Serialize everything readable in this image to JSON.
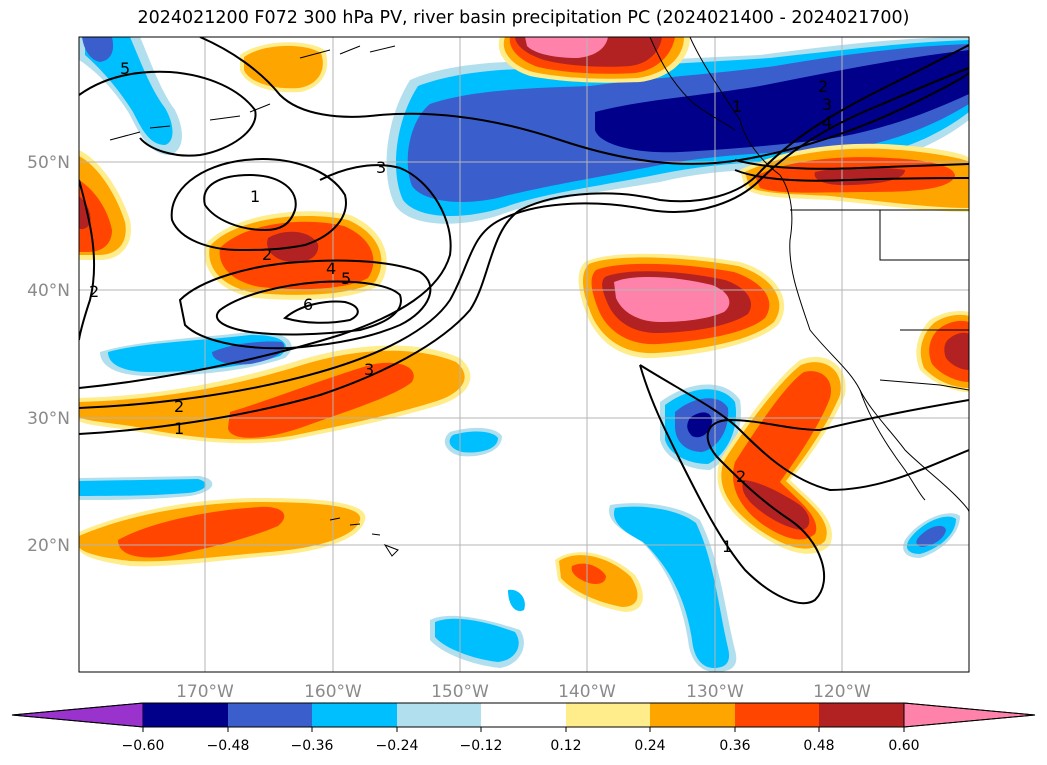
{
  "title": "2024021200 F072 300 hPa PV, river basin precipitation PC (2024021400 - 2024021700)",
  "map": {
    "lat_ticks": [
      "50°N",
      "40°N",
      "30°N",
      "20°N"
    ],
    "lon_ticks": [
      "170°W",
      "160°W",
      "150°W",
      "140°W",
      "130°W",
      "120°W"
    ],
    "contour_labels": [
      "1",
      "2",
      "3",
      "4",
      "5",
      "6"
    ]
  },
  "colorbar": {
    "ticks": [
      "−0.60",
      "−0.48",
      "−0.36",
      "−0.24",
      "−0.12",
      "0.12",
      "0.24",
      "0.36",
      "0.48",
      "0.60"
    ],
    "colors": [
      "#9a32cd",
      "#00008b",
      "#3a5fcd",
      "#00bfff",
      "#b2dfee",
      "#ffffff",
      "#ffec8b",
      "#ffa500",
      "#ff4500",
      "#b22222",
      "#ff82ab"
    ]
  },
  "colors": {
    "purple": "#9a32cd",
    "navy": "#00008b",
    "blue": "#3a5fcd",
    "cyan": "#00bfff",
    "lightblue": "#b2dfee",
    "yellow": "#ffec8b",
    "orange": "#ffa500",
    "redorange": "#ff4500",
    "firebrick": "#b22222",
    "pink": "#ff82ab",
    "grid": "#b5b5b5"
  }
}
